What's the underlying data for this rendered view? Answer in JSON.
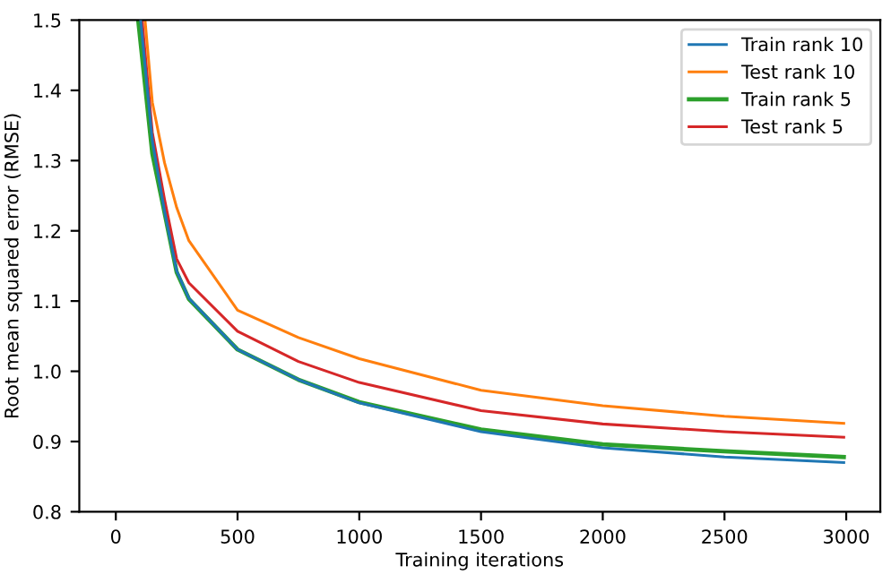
{
  "chart_data": {
    "type": "line",
    "xlabel": "Training iterations",
    "ylabel": "Root mean squared error (RMSE)",
    "xlim": [
      -150,
      3140
    ],
    "xticks": [
      0,
      500,
      1000,
      1500,
      2000,
      2500,
      3000
    ],
    "ylim": [
      0.8,
      1.5
    ],
    "yticks": [
      0.8,
      0.9,
      {
        "value": 1.0,
        "label": "1.0"
      },
      1.1,
      1.2,
      1.3,
      1.4,
      1.5
    ],
    "legend": "top right",
    "grid": false,
    "series": [
      {
        "name": "Train rank 10",
        "color": "#1f77b4",
        "x": [
          102,
          150,
          200,
          250,
          300,
          500,
          750,
          1000,
          1500,
          2000,
          2500,
          2990
        ],
        "values": [
          1.5,
          1.328,
          1.228,
          1.143,
          1.104,
          1.031,
          0.988,
          0.955,
          0.914,
          0.891,
          0.878,
          0.87
        ]
      },
      {
        "name": "Test rank 10",
        "color": "#ff7f0e",
        "x": [
          120,
          150,
          200,
          250,
          300,
          500,
          750,
          1000,
          1500,
          2000,
          2500,
          2990
        ],
        "values": [
          1.5,
          1.383,
          1.297,
          1.233,
          1.186,
          1.087,
          1.048,
          1.018,
          0.973,
          0.951,
          0.936,
          0.926
        ]
      },
      {
        "name": "Train rank 5",
        "color": "#2ca02c",
        "x": [
          92,
          150,
          200,
          250,
          300,
          500,
          750,
          1000,
          1500,
          2000,
          2500,
          2990
        ],
        "values": [
          1.5,
          1.31,
          1.226,
          1.141,
          1.103,
          1.031,
          0.988,
          0.956,
          0.917,
          0.896,
          0.886,
          0.878
        ]
      },
      {
        "name": "Test rank 5",
        "color": "#d62728",
        "x": [
          108,
          150,
          200,
          250,
          300,
          500,
          750,
          1000,
          1500,
          2000,
          2500,
          2990
        ],
        "values": [
          1.5,
          1.34,
          1.245,
          1.16,
          1.126,
          1.057,
          1.014,
          0.984,
          0.944,
          0.925,
          0.914,
          0.906
        ]
      }
    ]
  }
}
